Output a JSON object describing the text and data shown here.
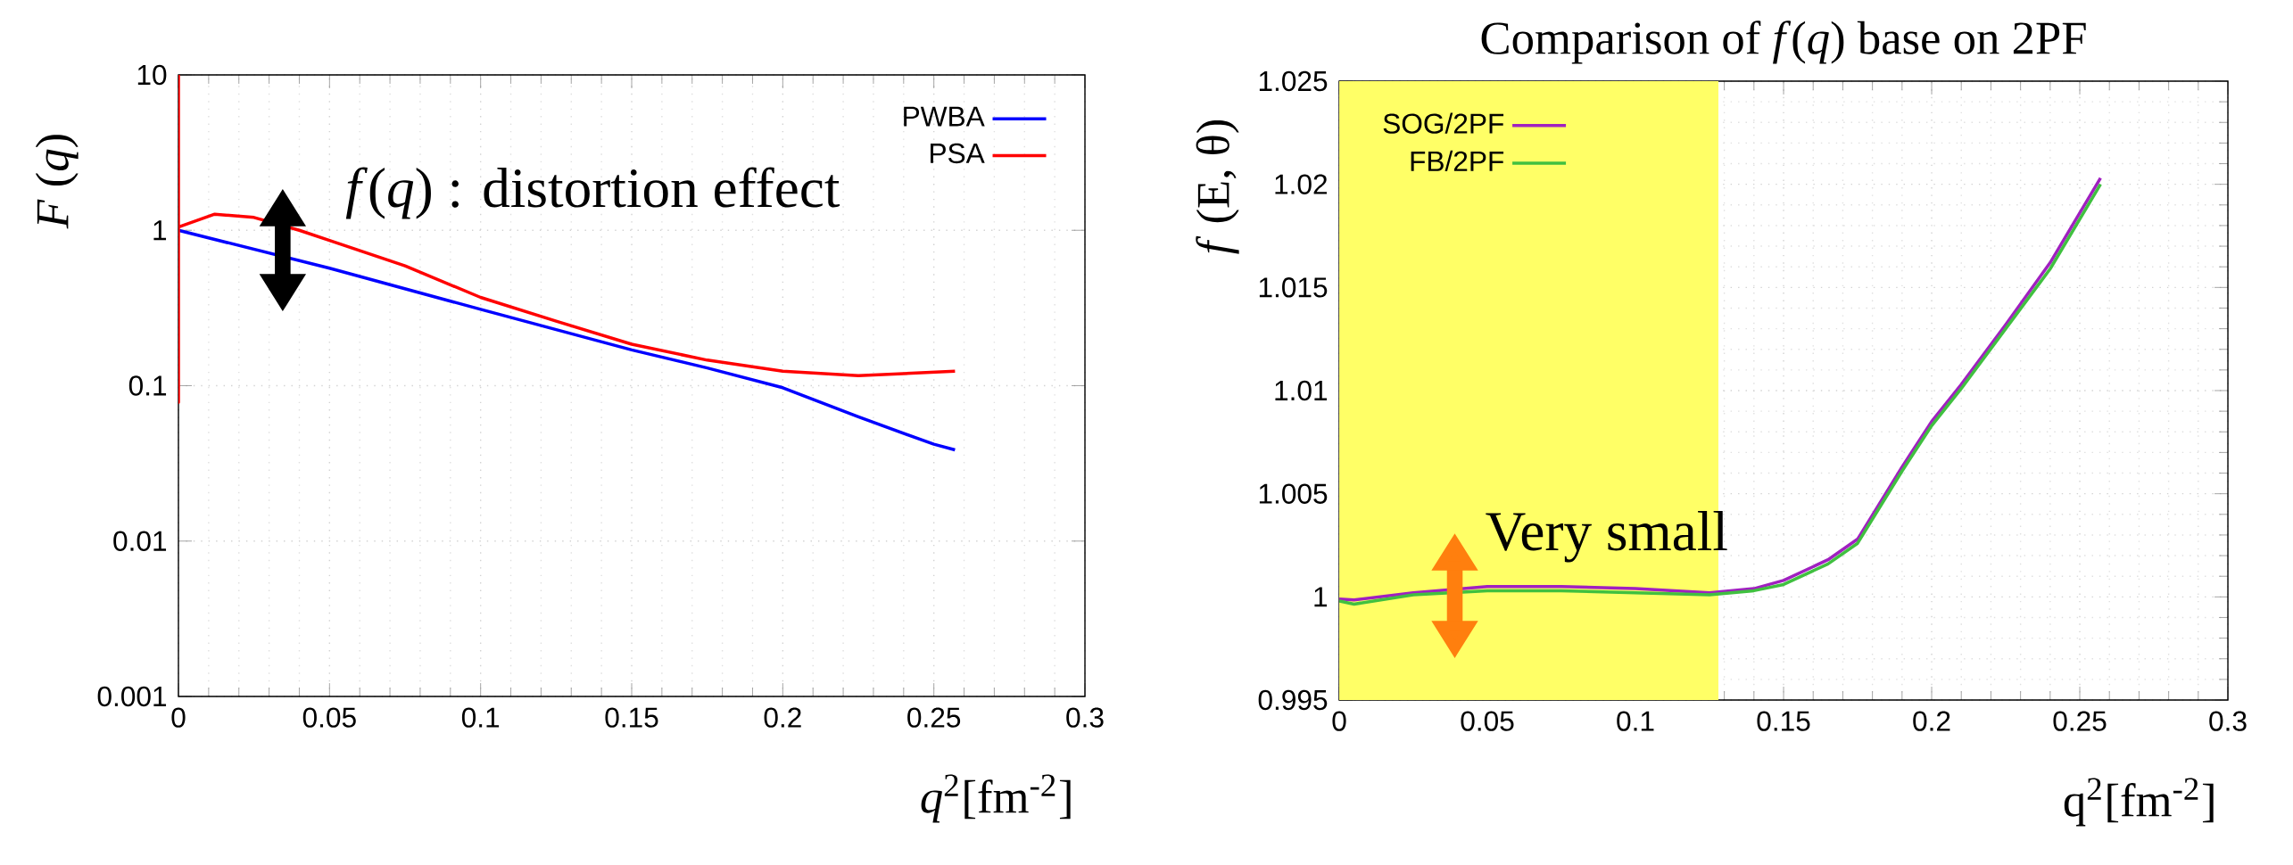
{
  "chart_data": [
    {
      "type": "line",
      "xlabel": "*q*$^{2}$[fm$^{-2}$]",
      "ylabel": "*F* (*q*)",
      "log": "y",
      "grid": true,
      "legend": "top right",
      "xlim": [
        0,
        0.3
      ],
      "xticks": [
        0,
        0.05,
        0.1,
        0.15,
        0.2,
        0.25,
        0.3
      ],
      "ylim": [
        0.001,
        10
      ],
      "yticks": [
        0.001,
        0.01,
        0.1,
        1,
        10
      ],
      "annotations": [
        "*f*(*q*) : distortion effect"
      ],
      "series": [
        {
          "name": "PWBA",
          "color": "#0000ff",
          "x": [
            0,
            0.05,
            0.1,
            0.15,
            0.175,
            0.2,
            0.225,
            0.25,
            0.257
          ],
          "values": [
            1,
            0.57,
            0.31,
            0.17,
            0.13,
            0.097,
            0.063,
            0.042,
            0.0386
          ]
        },
        {
          "name": "PSA",
          "color": "#ff0000",
          "x": [
            0,
            0,
            0,
            0.012,
            0.025,
            0.04,
            0.05,
            0.075,
            0.1,
            0.125,
            0.15,
            0.175,
            0.2,
            0.225,
            0.257
          ],
          "values": [
            10,
            0.078,
            1.05,
            1.27,
            1.21,
            1.0,
            0.86,
            0.59,
            0.37,
            0.26,
            0.185,
            0.146,
            0.124,
            0.116,
            0.124
          ]
        }
      ]
    },
    {
      "type": "line",
      "title": "Comparison of *f*(*q*) base on 2PF",
      "xlabel": "q$^{2}$[fm$^{-2}$]",
      "ylabel": "*f* (E, θ)",
      "grid": true,
      "legend": "top left",
      "xlim": [
        0,
        0.3
      ],
      "xticks": [
        0,
        0.05,
        0.1,
        0.15,
        0.2,
        0.25,
        0.3
      ],
      "ylim": [
        0.995,
        1.025
      ],
      "yticks": [
        0.995,
        1,
        1.005,
        1.01,
        1.015,
        1.02,
        1.025
      ],
      "bands": [
        {
          "axis": "x",
          "from": 0,
          "to": 0.128,
          "color": "#ffff66"
        }
      ],
      "annotations": [
        "Very small"
      ],
      "series": [
        {
          "name": "SOG/2PF",
          "color": "#a020c0",
          "x": [
            0,
            0.005,
            0.025,
            0.05,
            0.075,
            0.1,
            0.125,
            0.14,
            0.15,
            0.165,
            0.175,
            0.19,
            0.2,
            0.21,
            0.225,
            0.24,
            0.257
          ],
          "values": [
            0.9999,
            0.99985,
            1.0002,
            1.0005,
            1.0005,
            1.0004,
            1.0002,
            1.0004,
            1.0008,
            1.0018,
            1.0028,
            1.0063,
            1.0085,
            1.0103,
            1.0132,
            1.0162,
            1.0203
          ]
        },
        {
          "name": "FB/2PF",
          "color": "#40c040",
          "x": [
            0,
            0.005,
            0.025,
            0.05,
            0.075,
            0.1,
            0.125,
            0.14,
            0.15,
            0.165,
            0.175,
            0.19,
            0.2,
            0.21,
            0.225,
            0.24,
            0.257
          ],
          "values": [
            0.9998,
            0.99965,
            1.0001,
            1.0003,
            1.0003,
            1.0002,
            1.0001,
            1.0003,
            1.0006,
            1.0016,
            1.0026,
            1.0061,
            1.0083,
            1.0101,
            1.013,
            1.0159,
            1.02
          ]
        }
      ]
    }
  ]
}
